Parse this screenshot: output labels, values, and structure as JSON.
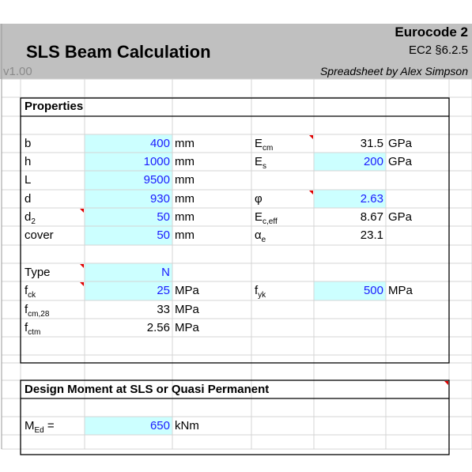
{
  "header": {
    "code": "Eurocode 2",
    "title": "SLS Beam Calculation",
    "clause": "EC2 §6.2.5",
    "version": "v1.00",
    "author": "Spreadsheet by Alex Simpson"
  },
  "properties": {
    "title": "Properties",
    "left": [
      {
        "label": "b",
        "value": 400,
        "unit": "mm",
        "input": true
      },
      {
        "label": "h",
        "value": 1000,
        "unit": "mm",
        "input": true
      },
      {
        "label": "L",
        "value": 9500,
        "unit": "mm",
        "input": true
      },
      {
        "label": "d",
        "value": 930,
        "unit": "mm",
        "input": true
      },
      {
        "label": {
          "main": "d",
          "sub": "2"
        },
        "value": 50,
        "unit": "mm",
        "input": true
      },
      {
        "label": "cover",
        "value": 50,
        "unit": "mm",
        "input": true
      },
      {
        "label": "Type",
        "value": "N",
        "input": true
      },
      {
        "label": {
          "main": "f",
          "sub": "ck"
        },
        "value": 25,
        "unit": "MPa",
        "input": true
      },
      {
        "label": {
          "main": "f",
          "sub": "cm,28"
        },
        "value": 33,
        "unit": "MPa",
        "input": false
      },
      {
        "label": {
          "main": "f",
          "sub": "ctm"
        },
        "value": 2.56,
        "unit": "MPa",
        "input": false
      }
    ],
    "right": [
      {
        "label": {
          "main": "E",
          "sub": "cm"
        },
        "value": 31.5,
        "unit": "GPa",
        "input": false
      },
      {
        "label": {
          "main": "E",
          "sub": "s"
        },
        "value": 200,
        "unit": "GPa",
        "input": true
      },
      {
        "label": "φ",
        "value": 2.63,
        "input": true
      },
      {
        "label": {
          "main": "E",
          "sub": "c,eff"
        },
        "value": 8.67,
        "unit": "GPa",
        "input": false
      },
      {
        "label": {
          "main": "α",
          "sub": "e"
        },
        "value": 23.1,
        "input": false
      },
      {
        "label": {
          "main": "f",
          "sub": "yk"
        },
        "value": 500,
        "unit": "MPa",
        "input": true
      }
    ]
  },
  "moment": {
    "title": "Design Moment at SLS or Quasi Permanent",
    "rows": [
      {
        "label": {
          "main": "M",
          "sub": "Ed",
          "suffix": " ="
        },
        "value": 650,
        "unit": "kNm",
        "input": true
      }
    ]
  }
}
